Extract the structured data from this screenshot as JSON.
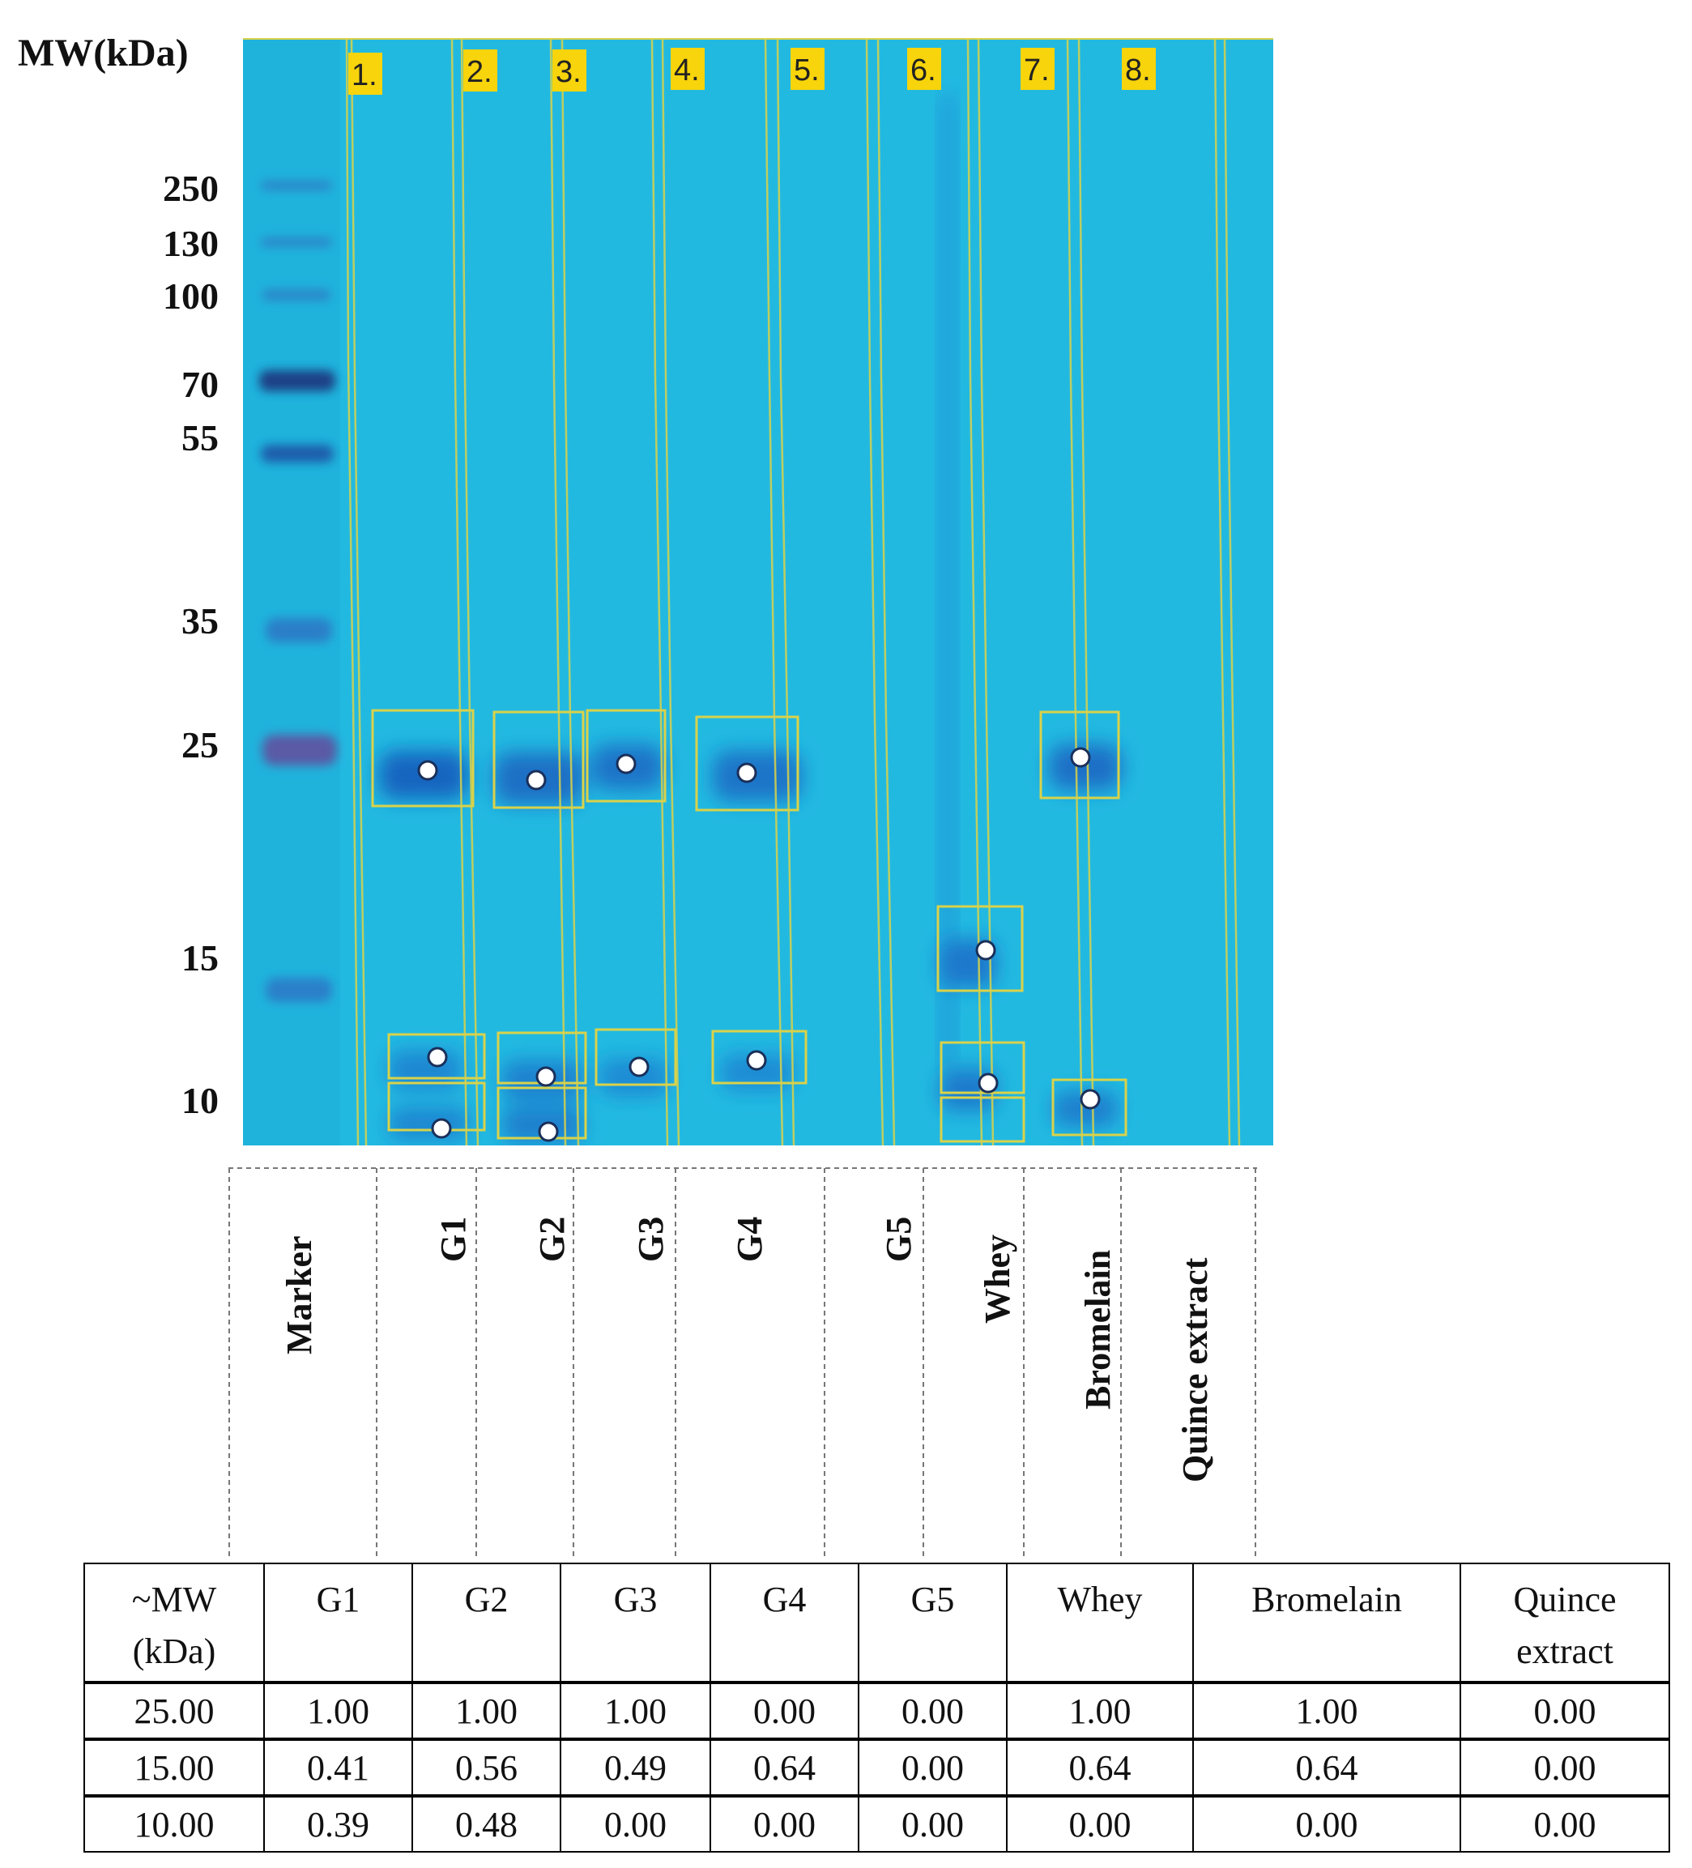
{
  "axis": {
    "title": "MW(kDa)",
    "marker_labels": [
      "250",
      "130",
      "100",
      "70",
      "55",
      "35",
      "25",
      "15",
      "10"
    ]
  },
  "gel": {
    "lane_numbers": [
      "1.",
      "2.",
      "3.",
      "4.",
      "5.",
      "6.",
      "7.",
      "8."
    ],
    "colors": {
      "background": "#21b8e0",
      "band": "#1573c8",
      "lane_box": "#d7d24a",
      "lane_tag": "#f7d40b"
    }
  },
  "lane_names": [
    "Marker",
    "G1",
    "G2",
    "G3",
    "G4",
    "G5",
    "Whey",
    "Bromelain",
    "Quince extract"
  ],
  "table": {
    "headers": [
      "~MW\n(kDa)",
      "G1",
      "G2",
      "G3",
      "G4",
      "G5",
      "Whey",
      "Bromelain",
      "Quince\nextract"
    ],
    "rows": [
      [
        "25.00",
        "1.00",
        "1.00",
        "1.00",
        "0.00",
        "0.00",
        "1.00",
        "1.00",
        "0.00"
      ],
      [
        "15.00",
        "0.41",
        "0.56",
        "0.49",
        "0.64",
        "0.00",
        "0.64",
        "0.64",
        "0.00"
      ],
      [
        "10.00",
        "0.39",
        "0.48",
        "0.00",
        "0.00",
        "0.00",
        "0.00",
        "0.00",
        "0.00"
      ]
    ]
  }
}
